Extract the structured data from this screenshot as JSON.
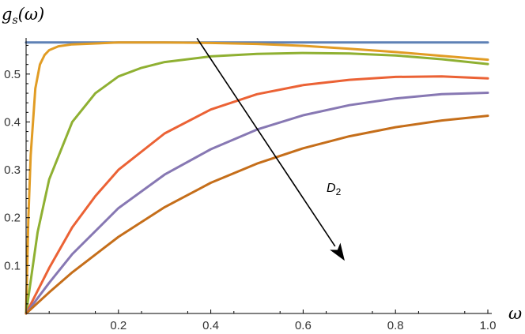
{
  "chart_data": {
    "type": "line",
    "ylabel_main": "g",
    "ylabel_sub": "s",
    "ylabel_rest": "(ω)",
    "xlabel": "ω",
    "xlim": [
      0,
      1
    ],
    "ylim": [
      0,
      0.585
    ],
    "xticks": [
      0.2,
      0.4,
      0.6,
      0.8,
      1.0
    ],
    "xtick_labels": [
      "0.2",
      "0.4",
      "0.6",
      "0.8",
      "1.0"
    ],
    "yticks": [
      0.1,
      0.2,
      0.3,
      0.4,
      0.5
    ],
    "ytick_labels": [
      "0.1",
      "0.2",
      "0.3",
      "0.4",
      "0.5"
    ],
    "grid": false,
    "annotation": {
      "main": "D",
      "sub": "2",
      "arrow_from": [
        0.37,
        0.575
      ],
      "arrow_to": [
        0.69,
        0.11
      ]
    },
    "series": [
      {
        "color": "#5E81B5",
        "x": [
          0.0,
          0.05,
          0.1,
          0.2,
          0.3,
          0.4,
          0.5,
          0.6,
          0.7,
          0.8,
          0.9,
          1.0
        ],
        "y": [
          0.566,
          0.566,
          0.566,
          0.566,
          0.566,
          0.566,
          0.566,
          0.566,
          0.566,
          0.566,
          0.566,
          0.566
        ]
      },
      {
        "color": "#E19C24",
        "x": [
          0.0,
          0.005,
          0.01,
          0.02,
          0.03,
          0.04,
          0.05,
          0.07,
          0.1,
          0.2,
          0.3,
          0.4,
          0.5,
          0.6,
          0.7,
          0.8,
          0.9,
          1.0
        ],
        "y": [
          0.0,
          0.2,
          0.33,
          0.47,
          0.52,
          0.54,
          0.55,
          0.558,
          0.562,
          0.566,
          0.566,
          0.565,
          0.563,
          0.559,
          0.553,
          0.546,
          0.538,
          0.53
        ]
      },
      {
        "color": "#8FB032",
        "x": [
          0.0,
          0.025,
          0.05,
          0.1,
          0.15,
          0.2,
          0.25,
          0.3,
          0.4,
          0.5,
          0.6,
          0.7,
          0.8,
          0.9,
          1.0
        ],
        "y": [
          0.0,
          0.17,
          0.28,
          0.4,
          0.46,
          0.495,
          0.513,
          0.525,
          0.537,
          0.542,
          0.544,
          0.543,
          0.539,
          0.531,
          0.521
        ]
      },
      {
        "color": "#EB6235",
        "x": [
          0.0,
          0.05,
          0.1,
          0.15,
          0.2,
          0.3,
          0.4,
          0.5,
          0.6,
          0.7,
          0.8,
          0.9,
          1.0
        ],
        "y": [
          0.0,
          0.095,
          0.18,
          0.245,
          0.3,
          0.376,
          0.426,
          0.458,
          0.477,
          0.488,
          0.494,
          0.495,
          0.491
        ]
      },
      {
        "color": "#8778B3",
        "x": [
          0.0,
          0.05,
          0.1,
          0.2,
          0.3,
          0.4,
          0.5,
          0.6,
          0.7,
          0.8,
          0.9,
          1.0
        ],
        "y": [
          0.0,
          0.064,
          0.124,
          0.22,
          0.29,
          0.343,
          0.384,
          0.414,
          0.435,
          0.449,
          0.458,
          0.461
        ]
      },
      {
        "color": "#C56E1A",
        "x": [
          0.0,
          0.05,
          0.1,
          0.2,
          0.3,
          0.4,
          0.5,
          0.6,
          0.7,
          0.8,
          0.9,
          1.0
        ],
        "y": [
          0.0,
          0.044,
          0.086,
          0.16,
          0.222,
          0.273,
          0.313,
          0.345,
          0.37,
          0.389,
          0.403,
          0.413
        ]
      }
    ]
  }
}
